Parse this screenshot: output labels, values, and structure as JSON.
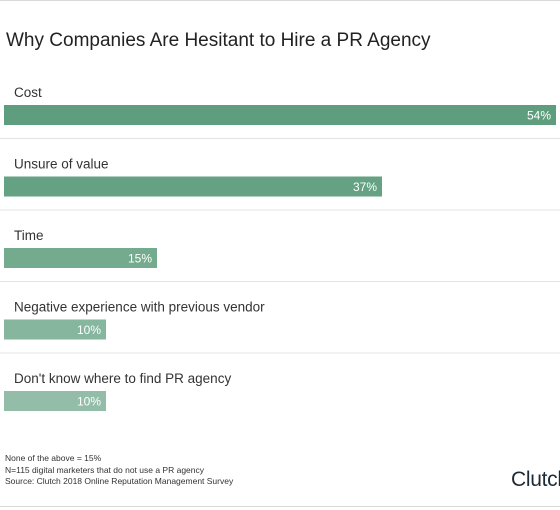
{
  "title": "Why Companies Are Hesitant to Hire a PR Agency",
  "chart_data": {
    "type": "bar",
    "orientation": "horizontal",
    "title": "Why Companies Are Hesitant to Hire a PR Agency",
    "categories": [
      "Cost",
      "Unsure of value",
      "Time",
      "Negative experience with previous vendor",
      "Don't know where to find PR agency"
    ],
    "values": [
      54,
      37,
      15,
      10,
      10
    ],
    "value_labels": [
      "54%",
      "37%",
      "15%",
      "10%",
      "10%"
    ],
    "unit": "%",
    "xlim": [
      0,
      54
    ],
    "grid": false,
    "legend": "none"
  },
  "colors": {
    "bars": [
      "#5e9e7e",
      "#65a283",
      "#74ab8f",
      "#86b69e",
      "#93bda8"
    ],
    "separator": "#e3e3e3",
    "text": "#333333"
  },
  "footnotes": [
    "None of the above = 15%",
    "N=115 digital marketers that do not use a PR agency",
    "Source: Clutch 2018 Online Reputation Management Survey"
  ],
  "logo": "Clutch"
}
